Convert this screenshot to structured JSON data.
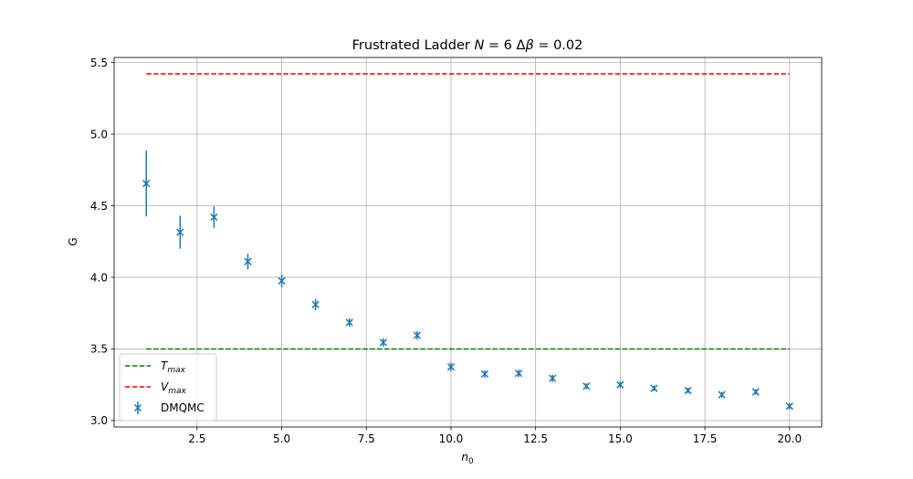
{
  "chart_data": {
    "type": "scatter",
    "title": "Frustrated Ladder N = 6 Δβ = 0.02",
    "title_parts": {
      "prefix": "Frustrated Ladder ",
      "n_symbol": "N",
      "n_value": " = 6 ",
      "delta": "Δ",
      "beta": "β",
      "beta_value": " = 0.02"
    },
    "xlabel": "n",
    "xlabel_sub": "0",
    "ylabel": "G",
    "xlim": [
      0.05,
      20.95
    ],
    "ylim": [
      2.955,
      5.535
    ],
    "xticks": [
      2.5,
      5.0,
      7.5,
      10.0,
      12.5,
      15.0,
      17.5,
      20.0
    ],
    "xtick_labels": [
      "2.5",
      "5.0",
      "7.5",
      "10.0",
      "12.5",
      "15.0",
      "17.5",
      "20.0"
    ],
    "yticks": [
      3.0,
      3.5,
      4.0,
      4.5,
      5.0,
      5.5
    ],
    "ytick_labels": [
      "3.0",
      "3.5",
      "4.0",
      "4.5",
      "5.0",
      "5.5"
    ],
    "grid": true,
    "legend_position": "lower-left",
    "series": [
      {
        "name": "DMQMC",
        "kind": "errorbar",
        "marker": "x",
        "color": "#1f77b4",
        "x": [
          1,
          2,
          3,
          4,
          5,
          6,
          7,
          8,
          9,
          10,
          11,
          12,
          13,
          14,
          15,
          16,
          17,
          18,
          19,
          20
        ],
        "y": [
          4.655,
          4.315,
          4.42,
          4.11,
          3.975,
          3.81,
          3.685,
          3.545,
          3.595,
          3.375,
          3.325,
          3.33,
          3.295,
          3.24,
          3.25,
          3.225,
          3.21,
          3.18,
          3.2,
          3.1
        ],
        "yerr": [
          0.23,
          0.115,
          0.075,
          0.055,
          0.045,
          0.04,
          0.03,
          0.03,
          0.03,
          0.03,
          0.025,
          0.025,
          0.025,
          0.02,
          0.02,
          0.02,
          0.02,
          0.02,
          0.02,
          0.02
        ]
      },
      {
        "name": "T",
        "name_sub": "max",
        "kind": "hline",
        "color": "#008000",
        "x": [
          1,
          20
        ],
        "y": [
          3.5,
          3.5
        ]
      },
      {
        "name": "V",
        "name_sub": "max",
        "kind": "hline",
        "color": "#ff0000",
        "x": [
          1,
          20
        ],
        "y": [
          5.42,
          5.42
        ]
      }
    ]
  }
}
